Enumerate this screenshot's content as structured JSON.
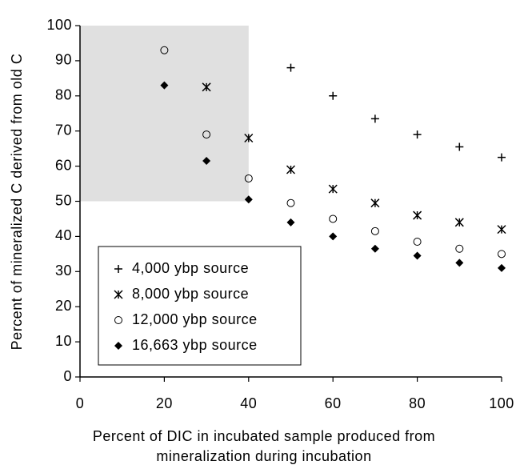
{
  "chart_data": {
    "type": "scatter",
    "ylabel": "Percent of mineralized C derived from old C",
    "xlabel": [
      "Percent of DIC in incubated sample produced from",
      "mineralization during incubation"
    ],
    "xlim": [
      0,
      100
    ],
    "xticks": [
      0,
      20,
      40,
      60,
      80,
      100
    ],
    "ylim": [
      0,
      100
    ],
    "yticks": [
      0,
      10,
      20,
      30,
      40,
      50,
      60,
      70,
      80,
      90,
      100
    ],
    "shaded_region": {
      "x": [
        0,
        40
      ],
      "y": [
        50,
        100
      ],
      "color": "#e0e0e0"
    },
    "legend": "lower left",
    "series": [
      {
        "name": "4,000 ybp source",
        "marker": "plus",
        "color": "#000000",
        "x": [
          50,
          60,
          70,
          80,
          90,
          100
        ],
        "values": [
          88,
          80,
          73.5,
          69,
          65.5,
          62.5
        ]
      },
      {
        "name": "8,000 ybp source",
        "marker": "asterisk",
        "color": "#000000",
        "x": [
          30,
          40,
          50,
          60,
          70,
          80,
          90,
          100
        ],
        "values": [
          82.5,
          68,
          59,
          53.5,
          49.5,
          46,
          44,
          42
        ]
      },
      {
        "name": "12,000 ybp source",
        "marker": "circle",
        "color": "#000000",
        "x": [
          20,
          30,
          40,
          50,
          60,
          70,
          80,
          90,
          100
        ],
        "values": [
          93,
          69,
          56.5,
          49.5,
          45,
          41.5,
          38.5,
          36.5,
          35
        ]
      },
      {
        "name": "16,663 ybp source",
        "marker": "diamond",
        "color": "#000000",
        "x": [
          20,
          30,
          40,
          50,
          60,
          70,
          80,
          90,
          100
        ],
        "values": [
          83,
          61.5,
          50.5,
          44,
          40,
          36.5,
          34.5,
          32.5,
          31
        ]
      }
    ]
  }
}
